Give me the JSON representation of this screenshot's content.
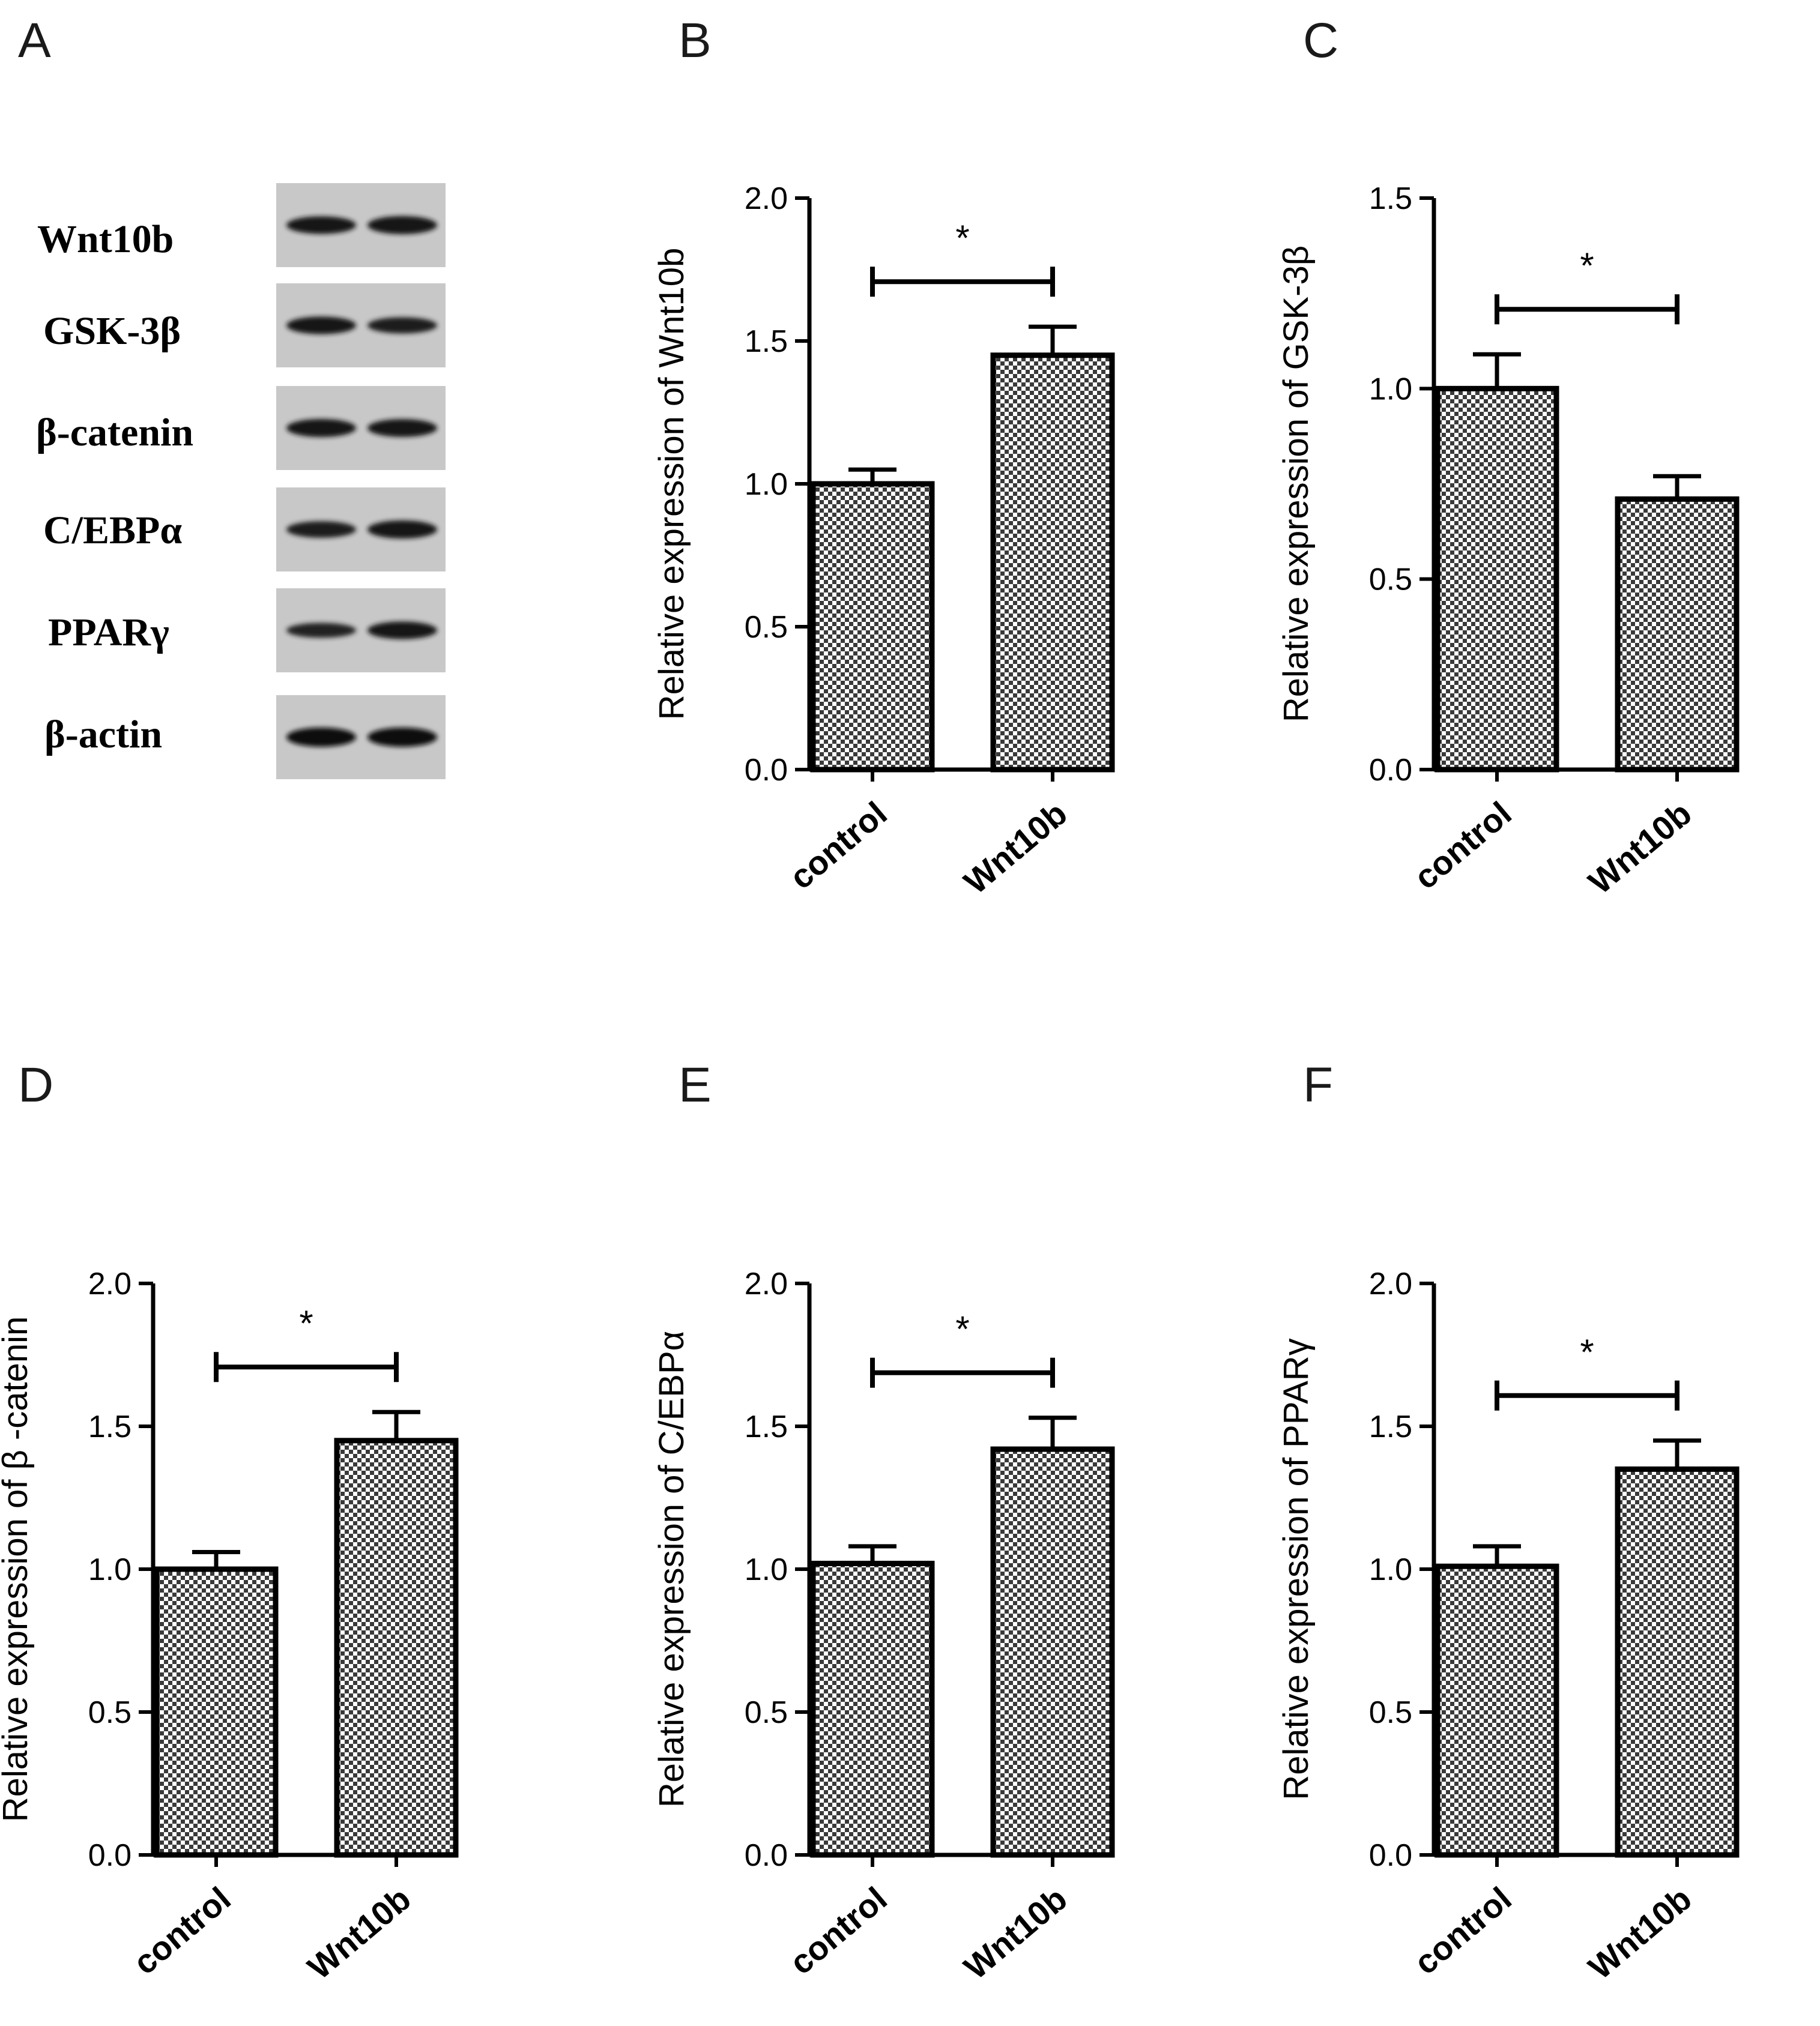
{
  "panel_letters": [
    "A",
    "B",
    "C",
    "D",
    "E",
    "F"
  ],
  "blot": {
    "labels": [
      "Wnt10b",
      "GSK-3β",
      "β-catenin",
      "C/EBPα",
      "PPARγ",
      "β-actin"
    ],
    "lane_intensities": [
      [
        0.85,
        0.9
      ],
      [
        0.85,
        0.72
      ],
      [
        0.9,
        0.88
      ],
      [
        0.75,
        0.9
      ],
      [
        0.6,
        0.85
      ],
      [
        1.0,
        1.0
      ]
    ]
  },
  "chart_data": [
    {
      "type": "bar",
      "panel": "B",
      "categories": [
        "control",
        "Wnt10b"
      ],
      "values": [
        1.0,
        1.45
      ],
      "errors": [
        0.05,
        0.1
      ],
      "ylabel": "Relative expression of Wnt10b",
      "ylim": [
        0,
        2.0
      ],
      "yticks": [
        "0.0",
        "0.5",
        "1.0",
        "1.5",
        "2.0"
      ],
      "significance": "*"
    },
    {
      "type": "bar",
      "panel": "C",
      "categories": [
        "control",
        "Wnt10b"
      ],
      "values": [
        1.0,
        0.71
      ],
      "errors": [
        0.09,
        0.06
      ],
      "ylabel": "Relative expression of GSK-3β",
      "ylim": [
        0,
        1.5
      ],
      "yticks": [
        "0.0",
        "0.5",
        "1.0",
        "1.5"
      ],
      "significance": "*"
    },
    {
      "type": "bar",
      "panel": "D",
      "categories": [
        "control",
        "Wnt10b"
      ],
      "values": [
        1.0,
        1.45
      ],
      "errors": [
        0.06,
        0.1
      ],
      "ylabel": "Relative expression of β -catenin",
      "ylim": [
        0,
        2.0
      ],
      "yticks": [
        "0.0",
        "0.5",
        "1.0",
        "1.5",
        "2.0"
      ],
      "significance": "*"
    },
    {
      "type": "bar",
      "panel": "E",
      "categories": [
        "control",
        "Wnt10b"
      ],
      "values": [
        1.02,
        1.42
      ],
      "errors": [
        0.06,
        0.11
      ],
      "ylabel": "Relative expression of C/EBPα",
      "ylim": [
        0,
        2.0
      ],
      "yticks": [
        "0.0",
        "0.5",
        "1.0",
        "1.5",
        "2.0"
      ],
      "significance": "*"
    },
    {
      "type": "bar",
      "panel": "F",
      "categories": [
        "control",
        "Wnt10b"
      ],
      "values": [
        1.01,
        1.35
      ],
      "errors": [
        0.07,
        0.1
      ],
      "ylabel": "Relative expression of PPARγ",
      "ylim": [
        0,
        2.0
      ],
      "yticks": [
        "0.0",
        "0.5",
        "1.0",
        "1.5",
        "2.0"
      ],
      "significance": "*"
    }
  ]
}
